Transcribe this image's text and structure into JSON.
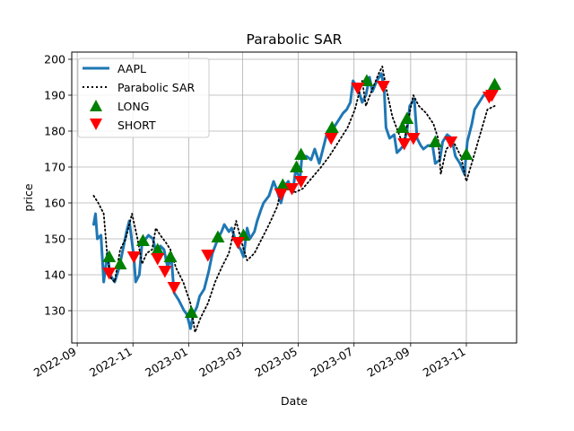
{
  "chart_data": {
    "type": "line",
    "title": "Parabolic SAR",
    "xlabel": "Date",
    "ylabel": "price",
    "x_range": [
      "2022-08-26",
      "2023-12-26"
    ],
    "ylim": [
      121,
      202
    ],
    "y_ticks": [
      130,
      140,
      150,
      160,
      170,
      180,
      190,
      200
    ],
    "x_ticks": [
      "2022-09-01",
      "2022-11-01",
      "2023-01-01",
      "2023-03-01",
      "2023-05-01",
      "2023-07-01",
      "2023-09-01",
      "2023-11-01"
    ],
    "x_tick_labels": [
      "2022-09",
      "2022-11",
      "2023-01",
      "2023-03",
      "2023-05",
      "2023-07",
      "2023-09",
      "2023-11"
    ],
    "grid": true,
    "legend_position": "top-left",
    "series": [
      {
        "name": "AAPL",
        "style": "line",
        "color": "#1f77b4",
        "points": [
          [
            "2022-09-19",
            154
          ],
          [
            "2022-09-21",
            157
          ],
          [
            "2022-09-23",
            150
          ],
          [
            "2022-09-27",
            151
          ],
          [
            "2022-09-30",
            138
          ],
          [
            "2022-10-04",
            146
          ],
          [
            "2022-10-07",
            140
          ],
          [
            "2022-10-12",
            138
          ],
          [
            "2022-10-17",
            142
          ],
          [
            "2022-10-21",
            147
          ],
          [
            "2022-10-25",
            152
          ],
          [
            "2022-10-28",
            155
          ],
          [
            "2022-11-02",
            145
          ],
          [
            "2022-11-04",
            138
          ],
          [
            "2022-11-08",
            140
          ],
          [
            "2022-11-11",
            149
          ],
          [
            "2022-11-15",
            150
          ],
          [
            "2022-11-18",
            151
          ],
          [
            "2022-11-23",
            150
          ],
          [
            "2022-11-28",
            144
          ],
          [
            "2022-12-01",
            148
          ],
          [
            "2022-12-05",
            147
          ],
          [
            "2022-12-09",
            142
          ],
          [
            "2022-12-13",
            145
          ],
          [
            "2022-12-16",
            135
          ],
          [
            "2022-12-21",
            133
          ],
          [
            "2022-12-27",
            130
          ],
          [
            "2022-12-30",
            129
          ],
          [
            "2023-01-03",
            125
          ],
          [
            "2023-01-06",
            129
          ],
          [
            "2023-01-10",
            131
          ],
          [
            "2023-01-13",
            134
          ],
          [
            "2023-01-18",
            136
          ],
          [
            "2023-01-23",
            141
          ],
          [
            "2023-01-27",
            146
          ],
          [
            "2023-02-02",
            150
          ],
          [
            "2023-02-06",
            152
          ],
          [
            "2023-02-09",
            154
          ],
          [
            "2023-02-14",
            152
          ],
          [
            "2023-02-17",
            153
          ],
          [
            "2023-02-22",
            149
          ],
          [
            "2023-02-27",
            147
          ],
          [
            "2023-03-02",
            145
          ],
          [
            "2023-03-06",
            153
          ],
          [
            "2023-03-09",
            150
          ],
          [
            "2023-03-14",
            152
          ],
          [
            "2023-03-17",
            155
          ],
          [
            "2023-03-21",
            158
          ],
          [
            "2023-03-24",
            160
          ],
          [
            "2023-03-30",
            162
          ],
          [
            "2023-04-04",
            166
          ],
          [
            "2023-04-07",
            164
          ],
          [
            "2023-04-12",
            160
          ],
          [
            "2023-04-17",
            165
          ],
          [
            "2023-04-20",
            166
          ],
          [
            "2023-04-25",
            163
          ],
          [
            "2023-04-28",
            169
          ],
          [
            "2023-05-03",
            167
          ],
          [
            "2023-05-05",
            173
          ],
          [
            "2023-05-10",
            173
          ],
          [
            "2023-05-15",
            172
          ],
          [
            "2023-05-19",
            175
          ],
          [
            "2023-05-24",
            171
          ],
          [
            "2023-05-30",
            177
          ],
          [
            "2023-06-02",
            180
          ],
          [
            "2023-06-06",
            179
          ],
          [
            "2023-06-09",
            181
          ],
          [
            "2023-06-14",
            183
          ],
          [
            "2023-06-19",
            185
          ],
          [
            "2023-06-23",
            186
          ],
          [
            "2023-06-27",
            188
          ],
          [
            "2023-06-30",
            194
          ],
          [
            "2023-07-05",
            192
          ],
          [
            "2023-07-10",
            188
          ],
          [
            "2023-07-14",
            190
          ],
          [
            "2023-07-18",
            195
          ],
          [
            "2023-07-21",
            191
          ],
          [
            "2023-07-26",
            194
          ],
          [
            "2023-07-31",
            196
          ],
          [
            "2023-08-03",
            192
          ],
          [
            "2023-08-05",
            181
          ],
          [
            "2023-08-09",
            178
          ],
          [
            "2023-08-14",
            179
          ],
          [
            "2023-08-17",
            174
          ],
          [
            "2023-08-21",
            175
          ],
          [
            "2023-08-24",
            176
          ],
          [
            "2023-08-28",
            180
          ],
          [
            "2023-08-31",
            187
          ],
          [
            "2023-09-05",
            189
          ],
          [
            "2023-09-08",
            178
          ],
          [
            "2023-09-12",
            176
          ],
          [
            "2023-09-15",
            175
          ],
          [
            "2023-09-20",
            176
          ],
          [
            "2023-09-25",
            176
          ],
          [
            "2023-09-28",
            171
          ],
          [
            "2023-10-03",
            172
          ],
          [
            "2023-10-06",
            177
          ],
          [
            "2023-10-11",
            179
          ],
          [
            "2023-10-16",
            178
          ],
          [
            "2023-10-20",
            173
          ],
          [
            "2023-10-25",
            171
          ],
          [
            "2023-10-30",
            168
          ],
          [
            "2023-11-02",
            177
          ],
          [
            "2023-11-07",
            182
          ],
          [
            "2023-11-10",
            186
          ],
          [
            "2023-11-15",
            188
          ],
          [
            "2023-11-20",
            190
          ],
          [
            "2023-11-24",
            190
          ],
          [
            "2023-11-28",
            191
          ],
          [
            "2023-12-01",
            191
          ]
        ]
      },
      {
        "name": "Parabolic SAR",
        "style": "dotted",
        "color": "#000000",
        "points": [
          [
            "2022-09-19",
            162
          ],
          [
            "2022-09-24",
            160
          ],
          [
            "2022-09-30",
            157
          ],
          [
            "2022-10-04",
            145
          ],
          [
            "2022-10-08",
            139
          ],
          [
            "2022-10-12",
            138
          ],
          [
            "2022-10-18",
            147
          ],
          [
            "2022-10-24",
            150
          ],
          [
            "2022-10-31",
            157
          ],
          [
            "2022-11-06",
            150
          ],
          [
            "2022-11-11",
            143
          ],
          [
            "2022-11-16",
            146
          ],
          [
            "2022-11-22",
            147
          ],
          [
            "2022-11-26",
            153
          ],
          [
            "2022-12-01",
            151
          ],
          [
            "2022-12-07",
            149
          ],
          [
            "2022-12-12",
            147
          ],
          [
            "2022-12-18",
            142
          ],
          [
            "2022-12-26",
            138
          ],
          [
            "2023-01-03",
            132
          ],
          [
            "2023-01-08",
            124
          ],
          [
            "2023-01-14",
            128
          ],
          [
            "2023-01-22",
            132
          ],
          [
            "2023-01-30",
            138
          ],
          [
            "2023-02-06",
            142
          ],
          [
            "2023-02-14",
            146
          ],
          [
            "2023-02-22",
            155
          ],
          [
            "2023-02-28",
            149
          ],
          [
            "2023-03-06",
            144
          ],
          [
            "2023-03-14",
            146
          ],
          [
            "2023-03-22",
            150
          ],
          [
            "2023-03-30",
            154
          ],
          [
            "2023-04-08",
            159
          ],
          [
            "2023-04-14",
            166
          ],
          [
            "2023-04-20",
            164
          ],
          [
            "2023-04-28",
            163
          ],
          [
            "2023-05-06",
            164
          ],
          [
            "2023-05-16",
            167
          ],
          [
            "2023-05-26",
            170
          ],
          [
            "2023-06-04",
            173
          ],
          [
            "2023-06-14",
            177
          ],
          [
            "2023-06-24",
            181
          ],
          [
            "2023-07-02",
            186
          ],
          [
            "2023-07-10",
            194
          ],
          [
            "2023-07-14",
            187
          ],
          [
            "2023-07-20",
            191
          ],
          [
            "2023-07-28",
            196
          ],
          [
            "2023-08-01",
            198
          ],
          [
            "2023-08-06",
            191
          ],
          [
            "2023-08-12",
            184
          ],
          [
            "2023-08-18",
            180
          ],
          [
            "2023-08-24",
            176
          ],
          [
            "2023-08-30",
            184
          ],
          [
            "2023-09-04",
            190
          ],
          [
            "2023-09-10",
            187
          ],
          [
            "2023-09-18",
            185
          ],
          [
            "2023-09-26",
            182
          ],
          [
            "2023-10-01",
            178
          ],
          [
            "2023-10-04",
            168
          ],
          [
            "2023-10-10",
            175
          ],
          [
            "2023-10-18",
            177
          ],
          [
            "2023-10-26",
            173
          ],
          [
            "2023-11-01",
            166
          ],
          [
            "2023-11-08",
            172
          ],
          [
            "2023-11-16",
            179
          ],
          [
            "2023-11-24",
            186
          ],
          [
            "2023-12-02",
            187
          ]
        ]
      },
      {
        "name": "LONG",
        "style": "marker-up",
        "color": "#008000",
        "points": [
          [
            "2022-10-06",
            145
          ],
          [
            "2022-10-18",
            143
          ],
          [
            "2022-11-12",
            149.5
          ],
          [
            "2022-11-28",
            147
          ],
          [
            "2022-12-12",
            145
          ],
          [
            "2023-01-04",
            129.5
          ],
          [
            "2023-02-02",
            150.5
          ],
          [
            "2023-03-02",
            151
          ],
          [
            "2023-04-14",
            165
          ],
          [
            "2023-04-29",
            170
          ],
          [
            "2023-05-04",
            173.5
          ],
          [
            "2023-06-07",
            181
          ],
          [
            "2023-07-15",
            194
          ],
          [
            "2023-08-23",
            181
          ],
          [
            "2023-08-28",
            183.5
          ],
          [
            "2023-09-28",
            177
          ],
          [
            "2023-11-01",
            173.5
          ],
          [
            "2023-12-02",
            193
          ]
        ]
      },
      {
        "name": "SHORT",
        "style": "marker-down",
        "color": "#ff0000",
        "points": [
          [
            "2022-10-06",
            140.5
          ],
          [
            "2022-11-02",
            145
          ],
          [
            "2022-11-28",
            144.5
          ],
          [
            "2022-12-06",
            141
          ],
          [
            "2022-12-16",
            136.5
          ],
          [
            "2023-01-22",
            145.5
          ],
          [
            "2023-02-24",
            149
          ],
          [
            "2023-04-12",
            162.5
          ],
          [
            "2023-04-24",
            164
          ],
          [
            "2023-05-04",
            166
          ],
          [
            "2023-06-06",
            178
          ],
          [
            "2023-07-05",
            192
          ],
          [
            "2023-08-02",
            192.5
          ],
          [
            "2023-08-25",
            176.5
          ],
          [
            "2023-09-04",
            178
          ],
          [
            "2023-10-15",
            177
          ],
          [
            "2023-11-26",
            189.5
          ],
          [
            "2023-11-29",
            190
          ]
        ]
      }
    ]
  }
}
